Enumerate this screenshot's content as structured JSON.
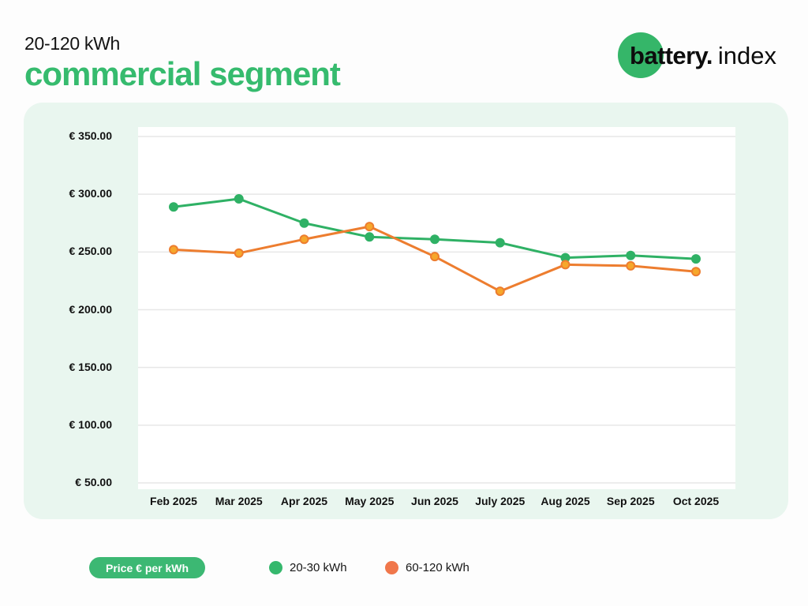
{
  "header": {
    "subtitle": "20-120 kWh",
    "title": "commercial segment",
    "logo": {
      "bold_text": "battery.",
      "light_text": "index",
      "circle_color": "#35b669"
    }
  },
  "footer_legend": {
    "axis_pill_label": "Price € per kWh",
    "items": [
      {
        "label": "20-30 kWh",
        "color": "#35b86d"
      },
      {
        "label": "60-120 kWh",
        "color": "#f0774b"
      }
    ]
  },
  "chart_data": {
    "type": "line",
    "title": "20-120 kWh commercial segment",
    "categories": [
      "Feb 2025",
      "Mar 2025",
      "Apr 2025",
      "May 2025",
      "Jun 2025",
      "July 2025",
      "Aug 2025",
      "Sep 2025",
      "Oct 2025"
    ],
    "series": [
      {
        "name": "20-30 kWh",
        "values": [
          289,
          296,
          275,
          263,
          261,
          258,
          245,
          247,
          244
        ],
        "line_color": "#2fb165",
        "marker_fill": "#2fb165"
      },
      {
        "name": "60-120 kWh",
        "values": [
          252,
          249,
          261,
          272,
          246,
          216,
          239,
          238,
          233
        ],
        "line_color": "#ed7d2f",
        "marker_fill": "#f6a72b"
      }
    ],
    "ylabel": "Price € per kWh",
    "xlabel": "",
    "ylim": [
      50,
      350
    ],
    "y_tick_step": 50,
    "y_ticks": [
      {
        "value": 350,
        "label": "€ 350.00"
      },
      {
        "value": 300,
        "label": "€ 300.00"
      },
      {
        "value": 250,
        "label": "€ 250.00"
      },
      {
        "value": 200,
        "label": "€ 200.00"
      },
      {
        "value": 150,
        "label": "€ 150.00"
      },
      {
        "value": 100,
        "label": "€ 100.00"
      },
      {
        "value": 50,
        "label": "€ 50.00"
      }
    ],
    "grid": "horizontal",
    "legend_position": "bottom",
    "gridline_color": "#e7e7e7"
  }
}
